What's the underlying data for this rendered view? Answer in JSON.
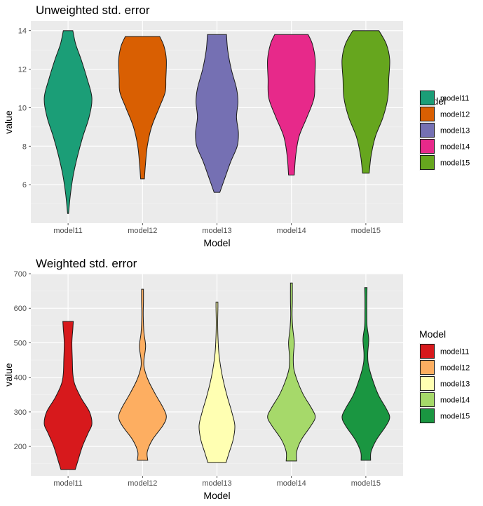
{
  "chart_data": [
    {
      "type": "violin",
      "title": "Unweighted std. error",
      "xlabel": "Model",
      "ylabel": "value",
      "ylim": [
        4.0,
        14.5
      ],
      "y_ticks": [
        6,
        8,
        10,
        12,
        14
      ],
      "categories": [
        "model11",
        "model12",
        "model13",
        "model14",
        "model15"
      ],
      "legend": {
        "title": "Model",
        "position": "right"
      },
      "grid": true,
      "series": [
        {
          "name": "model11",
          "color": "#1B9E77",
          "min": 4.5,
          "max": 14.0,
          "profile": [
            [
              4.5,
              0.02
            ],
            [
              5.5,
              0.1
            ],
            [
              6.5,
              0.22
            ],
            [
              7.5,
              0.4
            ],
            [
              8.5,
              0.62
            ],
            [
              9.5,
              0.88
            ],
            [
              10.5,
              1.0
            ],
            [
              11.5,
              0.8
            ],
            [
              12.5,
              0.55
            ],
            [
              13.3,
              0.32
            ],
            [
              14.0,
              0.2
            ]
          ]
        },
        {
          "name": "model12",
          "color": "#D95F02",
          "min": 6.3,
          "max": 13.7,
          "profile": [
            [
              6.3,
              0.08
            ],
            [
              7.0,
              0.12
            ],
            [
              8.0,
              0.2
            ],
            [
              9.0,
              0.38
            ],
            [
              10.0,
              0.7
            ],
            [
              10.8,
              0.95
            ],
            [
              11.5,
              0.98
            ],
            [
              12.5,
              1.0
            ],
            [
              13.2,
              0.9
            ],
            [
              13.7,
              0.72
            ]
          ]
        },
        {
          "name": "model13",
          "color": "#7570B3",
          "min": 5.6,
          "max": 13.8,
          "profile": [
            [
              5.6,
              0.12
            ],
            [
              6.3,
              0.32
            ],
            [
              7.2,
              0.58
            ],
            [
              8.0,
              0.85
            ],
            [
              8.7,
              0.9
            ],
            [
              9.5,
              0.82
            ],
            [
              10.3,
              0.88
            ],
            [
              11.0,
              0.82
            ],
            [
              12.0,
              0.6
            ],
            [
              13.0,
              0.45
            ],
            [
              13.8,
              0.4
            ]
          ]
        },
        {
          "name": "model14",
          "color": "#E7298A",
          "min": 6.5,
          "max": 13.8,
          "profile": [
            [
              6.5,
              0.12
            ],
            [
              7.5,
              0.18
            ],
            [
              8.5,
              0.32
            ],
            [
              9.5,
              0.65
            ],
            [
              10.5,
              0.95
            ],
            [
              11.5,
              0.98
            ],
            [
              12.5,
              1.0
            ],
            [
              13.3,
              0.88
            ],
            [
              13.8,
              0.7
            ]
          ]
        },
        {
          "name": "model15",
          "color": "#66A61E",
          "min": 6.6,
          "max": 14.0,
          "profile": [
            [
              6.6,
              0.14
            ],
            [
              7.5,
              0.22
            ],
            [
              8.5,
              0.4
            ],
            [
              9.5,
              0.72
            ],
            [
              10.5,
              0.92
            ],
            [
              11.5,
              0.96
            ],
            [
              12.5,
              1.0
            ],
            [
              13.3,
              0.86
            ],
            [
              14.0,
              0.55
            ]
          ]
        }
      ]
    },
    {
      "type": "violin",
      "title": "Weighted std. error",
      "xlabel": "Model",
      "ylabel": "value",
      "ylim": [
        115,
        700
      ],
      "y_ticks": [
        200,
        300,
        400,
        500,
        600,
        700
      ],
      "categories": [
        "model11",
        "model12",
        "model13",
        "model14",
        "model15"
      ],
      "legend": {
        "title": "Model",
        "position": "right"
      },
      "grid": true,
      "series": [
        {
          "name": "model11",
          "color": "#D7191C",
          "min": 133,
          "max": 562,
          "profile": [
            [
              133,
              0.3
            ],
            [
              160,
              0.42
            ],
            [
              200,
              0.6
            ],
            [
              240,
              0.85
            ],
            [
              265,
              1.0
            ],
            [
              300,
              0.9
            ],
            [
              340,
              0.55
            ],
            [
              380,
              0.28
            ],
            [
              410,
              0.2
            ],
            [
              450,
              0.18
            ],
            [
              500,
              0.16
            ],
            [
              540,
              0.2
            ],
            [
              562,
              0.22
            ]
          ]
        },
        {
          "name": "model12",
          "color": "#FDAE61",
          "min": 160,
          "max": 655,
          "profile": [
            [
              160,
              0.22
            ],
            [
              185,
              0.2
            ],
            [
              220,
              0.42
            ],
            [
              260,
              0.85
            ],
            [
              285,
              1.0
            ],
            [
              310,
              0.88
            ],
            [
              350,
              0.55
            ],
            [
              390,
              0.25
            ],
            [
              425,
              0.08
            ],
            [
              450,
              0.06
            ],
            [
              490,
              0.13
            ],
            [
              530,
              0.06
            ],
            [
              580,
              0.03
            ],
            [
              620,
              0.04
            ],
            [
              655,
              0.04
            ]
          ]
        },
        {
          "name": "model13",
          "color": "#FFFFB2",
          "min": 153,
          "max": 618,
          "profile": [
            [
              153,
              0.38
            ],
            [
              180,
              0.5
            ],
            [
              220,
              0.68
            ],
            [
              260,
              0.75
            ],
            [
              300,
              0.62
            ],
            [
              340,
              0.45
            ],
            [
              380,
              0.3
            ],
            [
              420,
              0.18
            ],
            [
              470,
              0.08
            ],
            [
              520,
              0.04
            ],
            [
              560,
              0.03
            ],
            [
              600,
              0.04
            ],
            [
              618,
              0.04
            ]
          ]
        },
        {
          "name": "model14",
          "color": "#A6D96A",
          "min": 158,
          "max": 673,
          "profile": [
            [
              158,
              0.22
            ],
            [
              185,
              0.22
            ],
            [
              220,
              0.42
            ],
            [
              260,
              0.82
            ],
            [
              285,
              1.0
            ],
            [
              310,
              0.85
            ],
            [
              350,
              0.5
            ],
            [
              390,
              0.25
            ],
            [
              425,
              0.1
            ],
            [
              460,
              0.08
            ],
            [
              500,
              0.12
            ],
            [
              540,
              0.06
            ],
            [
              580,
              0.03
            ],
            [
              620,
              0.04
            ],
            [
              673,
              0.04
            ]
          ]
        },
        {
          "name": "model15",
          "color": "#1A9641",
          "min": 160,
          "max": 660,
          "profile": [
            [
              160,
              0.2
            ],
            [
              185,
              0.22
            ],
            [
              220,
              0.45
            ],
            [
              260,
              0.85
            ],
            [
              285,
              1.0
            ],
            [
              310,
              0.85
            ],
            [
              350,
              0.52
            ],
            [
              400,
              0.25
            ],
            [
              440,
              0.1
            ],
            [
              470,
              0.08
            ],
            [
              510,
              0.12
            ],
            [
              550,
              0.05
            ],
            [
              590,
              0.04
            ],
            [
              630,
              0.04
            ],
            [
              660,
              0.05
            ]
          ]
        }
      ]
    }
  ]
}
